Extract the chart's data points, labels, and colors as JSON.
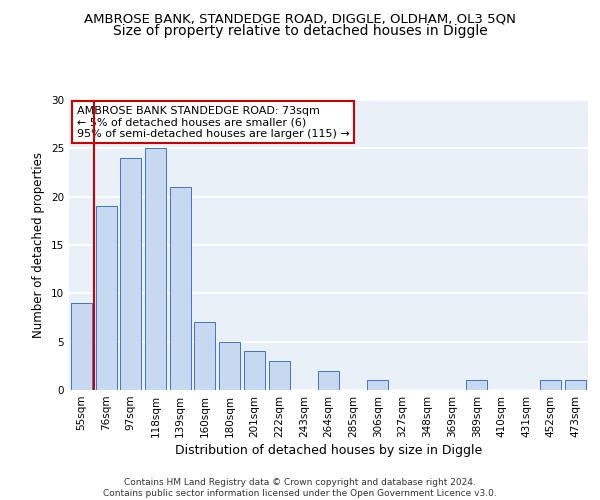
{
  "title1": "AMBROSE BANK, STANDEDGE ROAD, DIGGLE, OLDHAM, OL3 5QN",
  "title2": "Size of property relative to detached houses in Diggle",
  "xlabel": "Distribution of detached houses by size in Diggle",
  "ylabel": "Number of detached properties",
  "categories": [
    "55sqm",
    "76sqm",
    "97sqm",
    "118sqm",
    "139sqm",
    "160sqm",
    "180sqm",
    "201sqm",
    "222sqm",
    "243sqm",
    "264sqm",
    "285sqm",
    "306sqm",
    "327sqm",
    "348sqm",
    "369sqm",
    "389sqm",
    "410sqm",
    "431sqm",
    "452sqm",
    "473sqm"
  ],
  "values": [
    9,
    19,
    24,
    25,
    21,
    7,
    5,
    4,
    3,
    0,
    2,
    0,
    1,
    0,
    0,
    0,
    1,
    0,
    0,
    1,
    1
  ],
  "bar_color": "#c6d9f0",
  "bar_edge_color": "#4472c4",
  "highlight_line_color": "#cc0000",
  "annotation_text": "AMBROSE BANK STANDEDGE ROAD: 73sqm\n← 5% of detached houses are smaller (6)\n95% of semi-detached houses are larger (115) →",
  "annotation_box_color": "#ffffff",
  "annotation_box_edge_color": "#cc0000",
  "ylim": [
    0,
    30
  ],
  "yticks": [
    0,
    5,
    10,
    15,
    20,
    25,
    30
  ],
  "footer_text": "Contains HM Land Registry data © Crown copyright and database right 2024.\nContains public sector information licensed under the Open Government Licence v3.0.",
  "background_color": "#eaf0f8",
  "grid_color": "#ffffff",
  "title1_fontsize": 9.5,
  "title2_fontsize": 10,
  "xlabel_fontsize": 9,
  "ylabel_fontsize": 8.5,
  "tick_fontsize": 7.5,
  "annotation_fontsize": 8,
  "footer_fontsize": 6.5
}
